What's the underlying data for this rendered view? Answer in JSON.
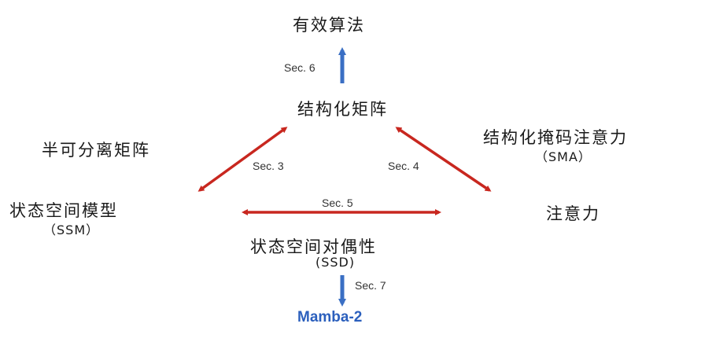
{
  "nodes": {
    "efficient_algorithms": "有效算法",
    "structured_matrix": "结构化矩阵",
    "semiseparable_matrix": "半可分离矩阵",
    "ssm": {
      "title": "状态空间模型",
      "abbr": "（SSM）"
    },
    "sma": {
      "title": "结构化掩码注意力",
      "abbr": "（SMA）"
    },
    "attention": "注意力",
    "ssd": {
      "title": "状态空间对偶性",
      "abbr": "(SSD)"
    },
    "mamba2": "Mamba-2"
  },
  "edges": {
    "sec6": "Sec. 6",
    "sec3": "Sec. 3",
    "sec4": "Sec. 4",
    "sec5": "Sec. 5",
    "sec7": "Sec. 7"
  },
  "colors": {
    "red_arrow": "#c8271f",
    "blue_arrow": "#3a6fc4",
    "mamba_text": "#2b5fbd"
  }
}
